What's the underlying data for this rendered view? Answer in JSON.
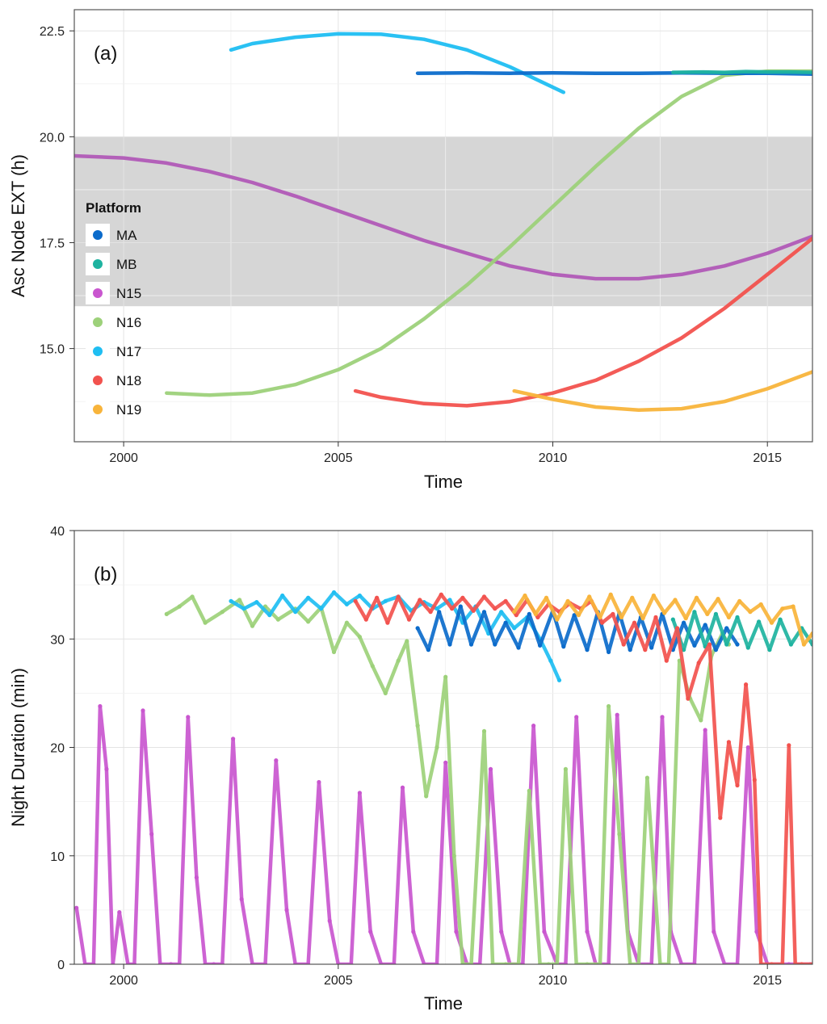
{
  "chart_data": [
    {
      "type": "line",
      "panel_label": "(a)",
      "xlabel": "Time",
      "ylabel": "Asc Node EXT (h)",
      "xlim": [
        1998.85,
        2016.05
      ],
      "ylim": [
        12.8,
        23.0
      ],
      "x_ticks": [
        2000,
        2005,
        2010,
        2015
      ],
      "x_tick_labels": [
        "2000",
        "2005",
        "2010",
        "2015"
      ],
      "y_ticks": [
        15.0,
        17.5,
        20.0,
        22.5
      ],
      "y_tick_labels": [
        "15.0",
        "17.5",
        "20.0",
        "22.5"
      ],
      "shaded_band": [
        16.0,
        20.0
      ],
      "grid": true,
      "legend": {
        "title": "Platform",
        "position": "left",
        "entries": [
          {
            "label": "MA",
            "color": "#0B6BCB"
          },
          {
            "label": "MB",
            "color": "#1EB3A0"
          },
          {
            "label": "N15",
            "color": "#C956CF"
          },
          {
            "label": "N16",
            "color": "#9DD17A"
          },
          {
            "label": "N17",
            "color": "#1FBEF2"
          },
          {
            "label": "N18",
            "color": "#F2524E"
          },
          {
            "label": "N19",
            "color": "#F8B43B"
          }
        ]
      },
      "series": [
        {
          "name": "N15",
          "color": "#B15AB7",
          "x": [
            1998.85,
            2000.0,
            2001.0,
            2002.0,
            2003.0,
            2004.0,
            2005.0,
            2006.0,
            2007.0,
            2008.0,
            2009.0,
            2010.0,
            2011.0,
            2012.0,
            2013.0,
            2014.0,
            2015.0,
            2016.05
          ],
          "y": [
            19.55,
            19.5,
            19.38,
            19.18,
            18.92,
            18.6,
            18.25,
            17.9,
            17.55,
            17.25,
            16.95,
            16.75,
            16.65,
            16.65,
            16.75,
            16.95,
            17.25,
            17.65
          ]
        },
        {
          "name": "N16",
          "color": "#9DD17A",
          "x": [
            2001.0,
            2002.0,
            2003.0,
            2004.0,
            2005.0,
            2006.0,
            2007.0,
            2008.0,
            2009.0,
            2010.0,
            2011.0,
            2012.0,
            2013.0,
            2014.0,
            2015.0,
            2016.05
          ],
          "y": [
            13.95,
            13.9,
            13.95,
            14.15,
            14.5,
            15.0,
            15.7,
            16.5,
            17.4,
            18.35,
            19.3,
            20.2,
            20.95,
            21.45,
            21.55,
            21.55
          ]
        },
        {
          "name": "N17",
          "color": "#1FBEF2",
          "x": [
            2002.5,
            2003.0,
            2004.0,
            2005.0,
            2006.0,
            2007.0,
            2008.0,
            2009.0,
            2010.25
          ],
          "y": [
            22.05,
            22.2,
            22.35,
            22.43,
            22.42,
            22.3,
            22.05,
            21.65,
            21.05
          ]
        },
        {
          "name": "MA",
          "color": "#0B6BCB",
          "x": [
            2006.85,
            2008.0,
            2009.0,
            2010.0,
            2011.0,
            2012.0,
            2013.0,
            2014.0,
            2015.0,
            2016.05
          ],
          "y": [
            21.5,
            21.51,
            21.5,
            21.51,
            21.5,
            21.5,
            21.51,
            21.5,
            21.5,
            21.48
          ]
        },
        {
          "name": "MB",
          "color": "#1EB3A0",
          "x": [
            2012.8,
            2013.5,
            2014.0,
            2014.5,
            2015.0,
            2015.5,
            2016.05
          ],
          "y": [
            21.52,
            21.53,
            21.52,
            21.54,
            21.53,
            21.53,
            21.52
          ]
        },
        {
          "name": "N18",
          "color": "#F2524E",
          "x": [
            2005.4,
            2006.0,
            2007.0,
            2008.0,
            2009.0,
            2010.0,
            2011.0,
            2012.0,
            2013.0,
            2014.0,
            2015.0,
            2016.05
          ],
          "y": [
            14.0,
            13.85,
            13.7,
            13.65,
            13.75,
            13.95,
            14.25,
            14.7,
            15.25,
            15.95,
            16.75,
            17.6
          ]
        },
        {
          "name": "N19",
          "color": "#F8B43B",
          "x": [
            2009.1,
            2010.0,
            2011.0,
            2012.0,
            2013.0,
            2014.0,
            2015.0,
            2016.05
          ],
          "y": [
            14.0,
            13.8,
            13.62,
            13.55,
            13.58,
            13.75,
            14.05,
            14.45
          ]
        }
      ]
    },
    {
      "type": "scatter",
      "panel_label": "(b)",
      "xlabel": "Time",
      "ylabel": "Night Duration (min)",
      "xlim": [
        1998.85,
        2016.05
      ],
      "ylim": [
        0,
        40
      ],
      "x_ticks": [
        2000,
        2005,
        2010,
        2015
      ],
      "x_tick_labels": [
        "2000",
        "2005",
        "2010",
        "2015"
      ],
      "y_ticks": [
        0,
        10,
        20,
        30,
        40
      ],
      "y_tick_labels": [
        "0",
        "10",
        "20",
        "30",
        "40"
      ],
      "grid": true,
      "series": [
        {
          "name": "N15",
          "color": "#C956CF",
          "x": [
            1998.9,
            1999.1,
            1999.3,
            1999.45,
            1999.6,
            1999.75,
            1999.9,
            2000.1,
            2000.25,
            2000.45,
            2000.65,
            2000.85,
            2001.1,
            2001.3,
            2001.5,
            2001.7,
            2001.9,
            2002.1,
            2002.3,
            2002.55,
            2002.75,
            2003.0,
            2003.3,
            2003.55,
            2003.8,
            2004.0,
            2004.3,
            2004.55,
            2004.8,
            2005.0,
            2005.3,
            2005.5,
            2005.75,
            2006.0,
            2006.3,
            2006.5,
            2006.75,
            2007.0,
            2007.3,
            2007.5,
            2007.75,
            2008.0,
            2008.3,
            2008.55,
            2008.8,
            2009.0,
            2009.3,
            2009.55,
            2009.8,
            2010.1,
            2010.3,
            2010.55,
            2010.8,
            2011.0,
            2011.3,
            2011.5,
            2011.75,
            2012.0,
            2012.3,
            2012.55,
            2012.75,
            2013.0,
            2013.3,
            2013.55,
            2013.75,
            2014.0,
            2014.3,
            2014.55,
            2014.75,
            2015.0,
            2015.5,
            2016.0
          ],
          "y": [
            5.2,
            0,
            0,
            23.8,
            18.0,
            0,
            4.8,
            0,
            0,
            23.4,
            12.0,
            0,
            0,
            0,
            22.8,
            8.0,
            0,
            0,
            0,
            20.8,
            6.0,
            0,
            0,
            18.8,
            5.0,
            0,
            0,
            16.8,
            4.0,
            0,
            0,
            15.8,
            3.0,
            0,
            0,
            16.3,
            3.0,
            0,
            0,
            18.6,
            3.0,
            0,
            0,
            18.0,
            3.0,
            0,
            0,
            22.0,
            3.0,
            0,
            0,
            22.8,
            3.0,
            0,
            0,
            23.0,
            3.0,
            0,
            0,
            22.8,
            3.0,
            0,
            0,
            21.6,
            3.0,
            0,
            0,
            20.0,
            3.0,
            0,
            0,
            0
          ]
        },
        {
          "name": "N16",
          "color": "#9DD17A",
          "x": [
            2001.0,
            2001.3,
            2001.6,
            2001.9,
            2002.3,
            2002.7,
            2003.0,
            2003.3,
            2003.6,
            2004.0,
            2004.3,
            2004.6,
            2004.9,
            2005.2,
            2005.5,
            2005.8,
            2006.1,
            2006.4,
            2006.6,
            2006.85,
            2007.05,
            2007.3,
            2007.5,
            2007.7,
            2007.9,
            2008.1,
            2008.4,
            2008.6,
            2008.9,
            2009.2,
            2009.45,
            2009.7,
            2009.9,
            2010.1,
            2010.3,
            2010.55,
            2010.8,
            2011.1,
            2011.3,
            2011.55,
            2011.8,
            2012.0,
            2012.2,
            2012.5,
            2012.7,
            2012.95,
            2013.2,
            2013.45,
            2013.7,
            2013.95,
            2014.1
          ],
          "y": [
            32.3,
            33.0,
            33.9,
            31.5,
            32.5,
            33.6,
            31.2,
            33.0,
            31.8,
            32.8,
            31.6,
            32.9,
            28.8,
            31.5,
            30.2,
            27.5,
            25.0,
            28.0,
            29.8,
            22.0,
            15.5,
            20.0,
            26.5,
            10.0,
            0,
            0,
            21.5,
            0,
            0,
            0,
            16.0,
            0,
            0,
            0,
            18.0,
            0,
            0,
            0,
            23.8,
            12.0,
            0,
            0,
            17.2,
            0,
            0,
            28.0,
            24.5,
            22.5,
            28.5,
            30.5,
            29.5
          ]
        },
        {
          "name": "N17",
          "color": "#1FBEF2",
          "x": [
            2002.5,
            2002.8,
            2003.1,
            2003.4,
            2003.7,
            2004.0,
            2004.3,
            2004.6,
            2004.9,
            2005.2,
            2005.5,
            2005.8,
            2006.1,
            2006.4,
            2006.7,
            2007.0,
            2007.3,
            2007.6,
            2007.9,
            2008.2,
            2008.5,
            2008.8,
            2009.1,
            2009.4,
            2009.7,
            2009.95,
            2010.15
          ],
          "y": [
            33.5,
            32.8,
            33.4,
            32.2,
            34.0,
            32.5,
            33.8,
            32.8,
            34.3,
            33.2,
            34.0,
            32.8,
            33.5,
            33.9,
            32.6,
            33.4,
            32.8,
            33.6,
            31.5,
            33.0,
            30.5,
            32.5,
            31.0,
            32.0,
            30.0,
            28.0,
            26.2
          ]
        },
        {
          "name": "MA",
          "color": "#0B6BCB",
          "x": [
            2006.85,
            2007.1,
            2007.35,
            2007.6,
            2007.85,
            2008.1,
            2008.4,
            2008.65,
            2008.9,
            2009.2,
            2009.45,
            2009.7,
            2010.0,
            2010.25,
            2010.5,
            2010.8,
            2011.05,
            2011.3,
            2011.55,
            2011.8,
            2012.05,
            2012.3,
            2012.55,
            2012.8,
            2013.05,
            2013.3,
            2013.55,
            2013.8,
            2014.05,
            2014.3
          ],
          "y": [
            31.0,
            29.0,
            32.5,
            29.5,
            33.0,
            29.5,
            32.5,
            29.5,
            31.5,
            29.2,
            32.3,
            29.4,
            32.6,
            29.3,
            32.2,
            29.0,
            32.5,
            28.8,
            32.4,
            29.0,
            32.0,
            29.2,
            32.3,
            29.0,
            31.5,
            29.4,
            31.3,
            29.0,
            31.0,
            29.5
          ]
        },
        {
          "name": "MB",
          "color": "#1EB3A0",
          "x": [
            2012.8,
            2013.05,
            2013.3,
            2013.55,
            2013.8,
            2014.05,
            2014.3,
            2014.55,
            2014.8,
            2015.05,
            2015.3,
            2015.55,
            2015.8,
            2016.05
          ],
          "y": [
            31.8,
            29.0,
            32.5,
            29.3,
            32.3,
            29.5,
            32.0,
            29.2,
            31.6,
            29.0,
            31.8,
            29.5,
            31.0,
            29.5
          ]
        },
        {
          "name": "N18",
          "color": "#F2524E",
          "x": [
            2005.4,
            2005.65,
            2005.9,
            2006.15,
            2006.4,
            2006.65,
            2006.9,
            2007.15,
            2007.4,
            2007.65,
            2007.9,
            2008.15,
            2008.4,
            2008.65,
            2008.9,
            2009.15,
            2009.4,
            2009.65,
            2009.9,
            2010.15,
            2010.4,
            2010.65,
            2010.9,
            2011.15,
            2011.4,
            2011.65,
            2011.9,
            2012.15,
            2012.4,
            2012.65,
            2012.9,
            2013.15,
            2013.4,
            2013.65,
            2013.9,
            2014.1,
            2014.3,
            2014.5,
            2014.7,
            2014.85,
            2015.1,
            2015.35,
            2015.5,
            2015.65,
            2015.8,
            2016.05
          ],
          "y": [
            33.5,
            31.8,
            33.8,
            31.5,
            33.9,
            31.8,
            33.6,
            32.5,
            34.1,
            32.8,
            33.8,
            32.6,
            33.9,
            32.8,
            33.5,
            32.2,
            33.6,
            32.0,
            33.2,
            32.5,
            33.3,
            32.8,
            33.5,
            31.5,
            32.3,
            29.5,
            31.5,
            29.0,
            32.0,
            28.0,
            31.0,
            24.5,
            27.8,
            29.5,
            13.5,
            20.5,
            16.5,
            25.8,
            17.0,
            0,
            0,
            0,
            20.2,
            0,
            0,
            0
          ]
        },
        {
          "name": "N19",
          "color": "#F8B43B",
          "x": [
            2009.1,
            2009.35,
            2009.6,
            2009.85,
            2010.1,
            2010.35,
            2010.6,
            2010.85,
            2011.1,
            2011.35,
            2011.6,
            2011.85,
            2012.1,
            2012.35,
            2012.6,
            2012.85,
            2013.1,
            2013.35,
            2013.6,
            2013.85,
            2014.1,
            2014.35,
            2014.6,
            2014.85,
            2015.1,
            2015.35,
            2015.6,
            2015.85,
            2016.05
          ],
          "y": [
            32.5,
            34.0,
            32.3,
            33.8,
            31.8,
            33.5,
            32.2,
            33.9,
            32.0,
            34.1,
            32.0,
            33.8,
            31.9,
            34.0,
            32.4,
            33.6,
            31.9,
            33.8,
            32.3,
            33.7,
            32.0,
            33.5,
            32.5,
            33.2,
            31.5,
            32.8,
            33.0,
            29.5,
            30.5
          ]
        }
      ]
    }
  ]
}
